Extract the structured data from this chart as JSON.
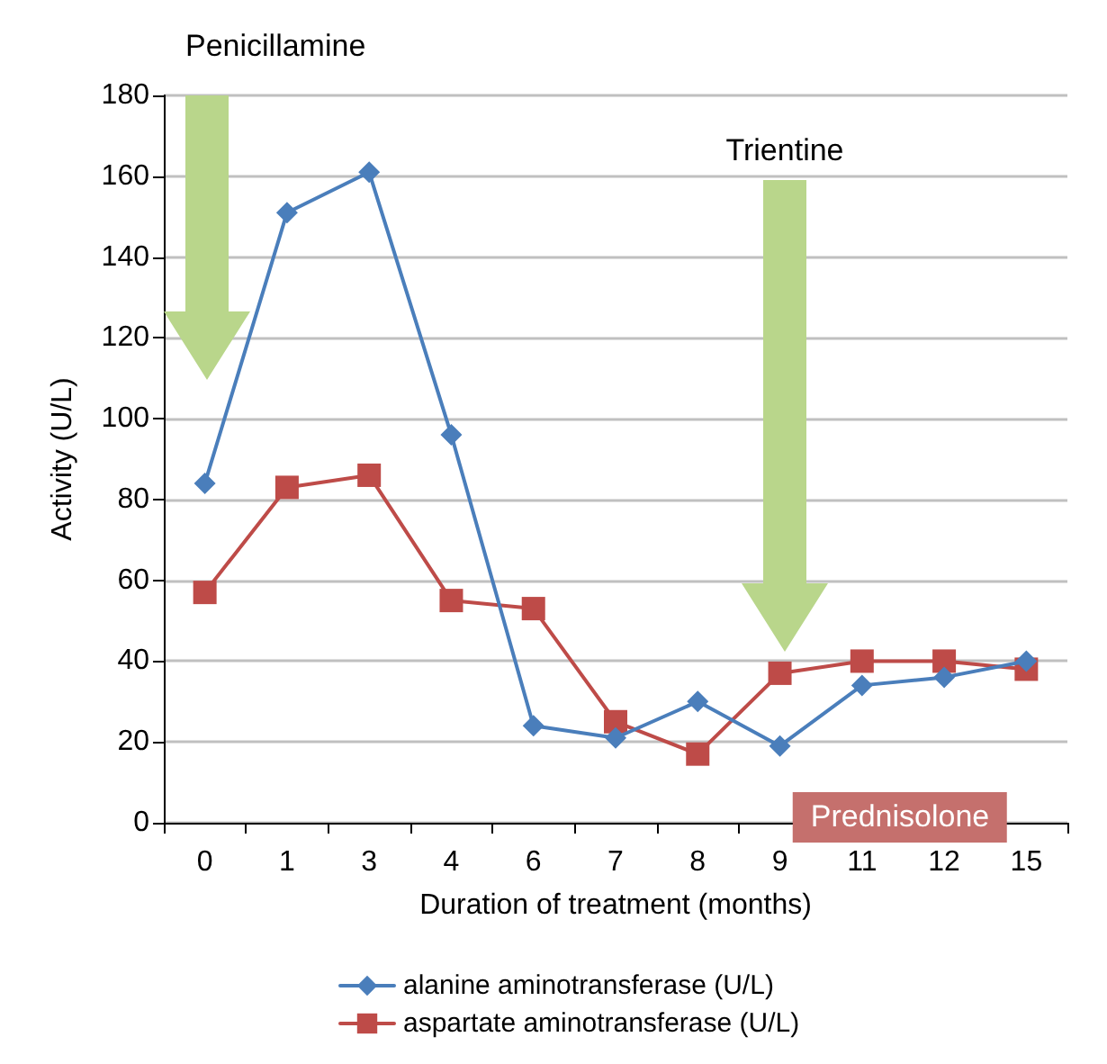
{
  "chart_data": {
    "type": "line",
    "xlabel": "Duration of treatment (months)",
    "ylabel": "Activity (U/L)",
    "categories": [
      "0",
      "1",
      "3",
      "4",
      "6",
      "7",
      "8",
      "9",
      "11",
      "12",
      "15"
    ],
    "series": [
      {
        "name": "alanine aminotransferase (U/L)",
        "color": "#4a7ebb",
        "marker": "diamond",
        "values": [
          84,
          151,
          161,
          96,
          24,
          21,
          30,
          19,
          34,
          36,
          40
        ]
      },
      {
        "name": "aspartate aminotransferase (U/L)",
        "color": "#be4b48",
        "marker": "square",
        "values": [
          57,
          83,
          86,
          55,
          53,
          25,
          17,
          37,
          40,
          40,
          38
        ]
      }
    ],
    "ylim": [
      0,
      180
    ],
    "yticks": [
      0,
      20,
      40,
      60,
      80,
      100,
      120,
      140,
      160,
      180
    ],
    "grid": "y",
    "legend": "bottom",
    "line_style": "solid",
    "annotations": [
      "Penicillamine",
      "Trientine",
      "Prednisolone"
    ]
  }
}
